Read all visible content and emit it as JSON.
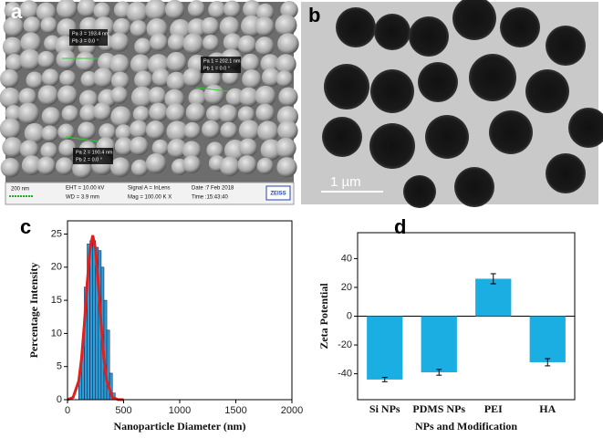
{
  "figure": {
    "panel_labels": [
      "a",
      "b",
      "c",
      "d"
    ],
    "sem": {
      "scale_bar": "200 nm",
      "info": [
        "EHT = 10.00 kV",
        "WD = 3.9 mm",
        "Signal A = InLens",
        "Mag = 100.00 K X",
        "Date :7 Feb 2018",
        "Time :15:43:40"
      ],
      "brand": "ZEISS",
      "measurements": [
        "Pa 3 = 193.4 nm",
        "Pb 3 = 0.0 °",
        "Pa 1 = 202.1 nm",
        "Pb 1 = 0.0 °",
        "Pa 2 = 190.4 nm",
        "Pb 2 = 0.0 °"
      ]
    },
    "tem": {
      "scale_bar": "1 µm"
    }
  },
  "chart_data": [
    {
      "type": "histogram",
      "xlabel": "Nanoparticle Diameter (nm)",
      "ylabel": "Percentage Intensity",
      "bins": [
        100,
        125,
        150,
        175,
        200,
        225,
        250,
        275,
        300,
        325,
        350,
        375,
        400,
        425
      ],
      "values": [
        4,
        8,
        17,
        23.5,
        24,
        24,
        23,
        22.5,
        20,
        15,
        10.5,
        4,
        1
      ],
      "color": "#2a9fd6",
      "line": {
        "color": "#e0201e",
        "x": [
          0,
          50,
          100,
          125,
          150,
          175,
          200,
          225,
          250,
          275,
          300,
          325,
          350,
          400,
          450,
          500
        ],
        "values": [
          0,
          0.35,
          2.8,
          6.2,
          11.4,
          17.5,
          22.7,
          24.8,
          22.7,
          17.5,
          11.4,
          6.2,
          2.8,
          0.35,
          0.02,
          0
        ]
      },
      "xlim": [
        0,
        2000
      ],
      "xticks": [
        0,
        500,
        1000,
        1500,
        2000
      ],
      "ylim": [
        0,
        27
      ],
      "yticks": [
        0,
        5,
        10,
        15,
        20,
        25
      ]
    },
    {
      "type": "bar",
      "xlabel": "NPs and Modification",
      "ylabel": "Zeta Potential",
      "categories": [
        "Si NPs",
        "PDMS NPs",
        "PEI",
        "HA"
      ],
      "values": [
        -44,
        -39,
        26,
        -32
      ],
      "errors": [
        1.5,
        2,
        3.5,
        2.5
      ],
      "color": "#1aaee3",
      "ylim": [
        -58,
        58
      ],
      "yticks": [
        -40,
        -20,
        0,
        20,
        40
      ]
    }
  ]
}
